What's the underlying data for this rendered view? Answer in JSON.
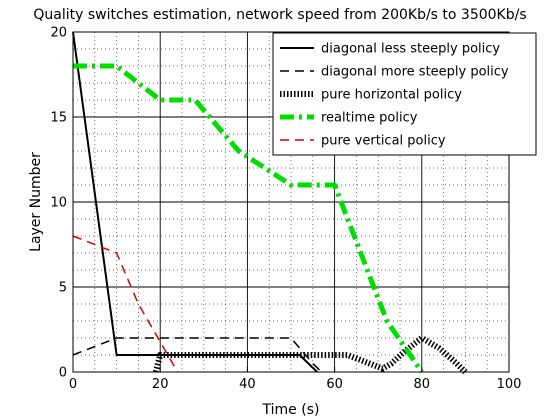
{
  "chart_data": {
    "type": "line",
    "title": "Quality switches estimation, network speed from 200Kb/s to 3500Kb/s",
    "xlabel": "Time (s)",
    "ylabel": "Layer Number",
    "xlim": [
      0,
      100
    ],
    "ylim": [
      0,
      20
    ],
    "xticks": [
      0,
      20,
      40,
      60,
      80,
      100
    ],
    "yticks": [
      0,
      5,
      10,
      15,
      20
    ],
    "grid": "dotted",
    "legend_position": "top-right",
    "series": [
      {
        "name": "diagonal less steeply policy",
        "color": "#000000",
        "style": "solid",
        "points": [
          [
            0,
            20
          ],
          [
            10,
            1
          ],
          [
            52,
            1
          ],
          [
            54,
            0.5
          ],
          [
            56,
            0
          ]
        ]
      },
      {
        "name": "diagonal more steeply policy",
        "color": "#000000",
        "style": "dashed",
        "points": [
          [
            0,
            1
          ],
          [
            10,
            2
          ],
          [
            50,
            2
          ],
          [
            55,
            0.5
          ],
          [
            57,
            0
          ]
        ]
      },
      {
        "name": "pure horizontal policy",
        "color": "#000000",
        "style": "dotted-heavy",
        "points": [
          [
            19,
            0
          ],
          [
            20,
            1
          ],
          [
            63,
            1
          ],
          [
            67,
            0.6
          ],
          [
            71,
            0.2
          ],
          [
            73,
            0.5
          ],
          [
            76,
            1.2
          ],
          [
            80,
            2
          ],
          [
            84,
            1.4
          ],
          [
            88,
            0.5
          ],
          [
            90,
            0
          ]
        ]
      },
      {
        "name": "realtime policy",
        "color": "#00dd00",
        "style": "dashdot-thick",
        "points": [
          [
            0,
            18
          ],
          [
            10,
            18
          ],
          [
            20,
            16
          ],
          [
            28,
            16
          ],
          [
            38,
            13
          ],
          [
            50,
            11
          ],
          [
            60,
            11
          ],
          [
            72,
            3
          ],
          [
            80,
            0
          ]
        ]
      },
      {
        "name": "pure vertical policy",
        "color": "#dd0000",
        "style": "dashed",
        "points": [
          [
            0,
            8
          ],
          [
            10,
            7
          ],
          [
            15,
            4
          ],
          [
            24,
            0
          ]
        ]
      }
    ]
  }
}
